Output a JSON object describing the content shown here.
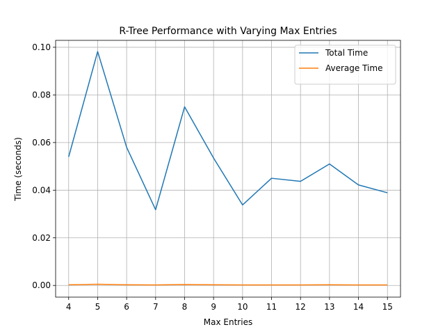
{
  "chart_data": {
    "type": "line",
    "title": "R-Tree Performance with Varying Max Entries",
    "xlabel": "Max Entries",
    "ylabel": "Time (seconds)",
    "x": [
      4,
      5,
      6,
      7,
      8,
      9,
      10,
      11,
      12,
      13,
      14,
      15
    ],
    "xlim": [
      3.55,
      15.45
    ],
    "ylim": [
      -0.0049,
      0.1029
    ],
    "x_ticks": [
      "4",
      "5",
      "6",
      "7",
      "8",
      "9",
      "10",
      "11",
      "12",
      "13",
      "14",
      "15"
    ],
    "y_ticks": [
      0.0,
      0.02,
      0.04,
      0.06,
      0.08,
      0.1
    ],
    "y_tick_labels": [
      "0.00",
      "0.02",
      "0.04",
      "0.06",
      "0.08",
      "0.10"
    ],
    "grid": true,
    "legend_position": "top-right",
    "series": [
      {
        "name": "Total Time",
        "color": "#1f77b4",
        "values": [
          0.054,
          0.0982,
          0.058,
          0.0318,
          0.075,
          0.0535,
          0.0338,
          0.045,
          0.0437,
          0.051,
          0.0422,
          0.0389
        ]
      },
      {
        "name": "Average Time",
        "color": "#ff7f0e",
        "values": [
          0.0003,
          0.0005,
          0.0003,
          0.0002,
          0.0004,
          0.0003,
          0.0002,
          0.0002,
          0.0002,
          0.0003,
          0.0002,
          0.0002
        ]
      }
    ]
  }
}
